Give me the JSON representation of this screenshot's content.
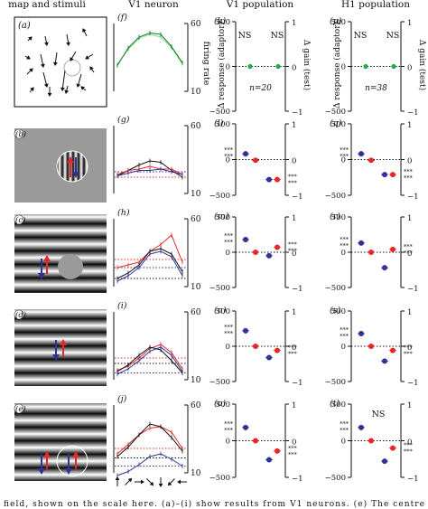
{
  "headers": {
    "col1": "map and stimuli",
    "col2": "V1 neuron",
    "col3": "V1 population",
    "col4": "H1 population"
  },
  "panel_letters": {
    "stimuli": [
      "(a)",
      "(b)",
      "(c)",
      "(d)",
      "(e)"
    ],
    "neuron": [
      "(f)",
      "(g)",
      "(h)",
      "(i)",
      "(j)"
    ],
    "v1": [
      "(k)",
      "(l)",
      "(m)",
      "(n)",
      "(o)"
    ],
    "h1": [
      "(p)",
      "(q)",
      "(r)",
      "(s)",
      "(t)"
    ]
  },
  "axis_labels": {
    "firing_rate": "firing rate",
    "delta_response": "Δ response (adaptor)",
    "delta_gain": "Δ gain (test)"
  },
  "ticks": {
    "neuron": [
      "60",
      "10"
    ],
    "pop_left": [
      "500",
      "0",
      "−500"
    ],
    "pop_right": [
      "1",
      "0",
      "−1"
    ]
  },
  "annotations": {
    "ns": "NS",
    "v1_n": "n=20",
    "h1_n": "n=38",
    "stars": "***",
    "double_star": "**",
    "single_star": "*"
  },
  "caption": "field, shown on the scale here. (a)–(i) show results from V1 neurons. (e) The centre",
  "colors": {
    "red": "#e8262a",
    "blue": "#2f3396",
    "black": "#111111",
    "green": "#22aa44",
    "light_green": "#88dd88"
  },
  "chart_data": [
    {
      "type": "line",
      "panel": "(f)",
      "series": [
        {
          "values": [
            30,
            41,
            49,
            52,
            50,
            42,
            30
          ]
        },
        {
          "values": [
            29,
            42,
            50,
            53,
            52,
            43,
            31
          ]
        }
      ],
      "ylim": [
        10,
        60
      ]
    },
    {
      "type": "line",
      "panel": "(g)",
      "series": [
        {
          "values": [
            23,
            27,
            31,
            34,
            33,
            27,
            22
          ]
        },
        {
          "values": [
            24,
            27,
            28,
            30,
            28,
            28,
            24
          ]
        },
        {
          "values": [
            23,
            25,
            27,
            27,
            28,
            26,
            24
          ]
        }
      ],
      "ylim": [
        10,
        60
      ]
    },
    {
      "type": "line",
      "panel": "(h)",
      "series": [
        {
          "values": [
            24,
            26,
            28,
            36,
            41,
            48,
            28
          ]
        },
        {
          "values": [
            16,
            20,
            26,
            36,
            38,
            34,
            21
          ]
        },
        {
          "values": [
            14,
            18,
            24,
            34,
            36,
            32,
            18
          ]
        }
      ],
      "ylim": [
        10,
        60
      ]
    },
    {
      "type": "line",
      "panel": "(i)",
      "series": [
        {
          "values": [
            17,
            20,
            26,
            33,
            36,
            30,
            18
          ]
        },
        {
          "values": [
            16,
            21,
            28,
            34,
            32,
            24,
            15
          ]
        },
        {
          "values": [
            14,
            18,
            24,
            31,
            34,
            28,
            16
          ]
        }
      ],
      "ylim": [
        10,
        60
      ]
    },
    {
      "type": "line",
      "panel": "(j)",
      "series": [
        {
          "values": [
            24,
            31,
            38,
            43,
            44,
            40,
            28
          ]
        },
        {
          "values": [
            22,
            29,
            38,
            46,
            44,
            36,
            26
          ]
        },
        {
          "values": [
            8,
            11,
            16,
            22,
            24,
            20,
            15
          ]
        }
      ],
      "ylim": [
        10,
        60
      ]
    },
    {
      "type": "scatter",
      "panel": "(k)",
      "points": [
        {
          "value": 0
        },
        {
          "value": 0
        }
      ],
      "ylim": [
        -500,
        500
      ]
    },
    {
      "type": "scatter",
      "panel": "(l)",
      "points": [
        {
          "value": 80
        },
        {
          "value": -10
        },
        {
          "value": -280
        },
        {
          "value": -280
        }
      ],
      "ylim": [
        -500,
        500
      ]
    },
    {
      "type": "scatter",
      "panel": "(m)",
      "points": [
        {
          "value": 180
        },
        {
          "value": 0
        },
        {
          "value": -50
        },
        {
          "value": 70
        }
      ],
      "ylim": [
        -500,
        500
      ]
    },
    {
      "type": "scatter",
      "panel": "(n)",
      "points": [
        {
          "value": 220
        },
        {
          "value": 0
        },
        {
          "value": -160
        },
        {
          "value": -60
        }
      ],
      "ylim": [
        -500,
        500
      ]
    },
    {
      "type": "scatter",
      "panel": "(o)",
      "points": [
        {
          "value": 180
        },
        {
          "value": 0
        },
        {
          "value": -260
        },
        {
          "value": -140
        }
      ],
      "ylim": [
        -500,
        500
      ]
    },
    {
      "type": "scatter",
      "panel": "(p)",
      "points": [
        {
          "value": 0
        },
        {
          "value": 0
        }
      ],
      "ylim": [
        -500,
        500
      ]
    },
    {
      "type": "scatter",
      "panel": "(q)",
      "points": [
        {
          "value": 80
        },
        {
          "value": -10
        },
        {
          "value": -210
        },
        {
          "value": -210
        }
      ],
      "ylim": [
        -500,
        500
      ]
    },
    {
      "type": "scatter",
      "panel": "(r)",
      "points": [
        {
          "value": 130
        },
        {
          "value": 0
        },
        {
          "value": -220
        },
        {
          "value": 40
        }
      ],
      "ylim": [
        -500,
        500
      ]
    },
    {
      "type": "scatter",
      "panel": "(s)",
      "points": [
        {
          "value": 180
        },
        {
          "value": 0
        },
        {
          "value": -210
        },
        {
          "value": -60
        }
      ],
      "ylim": [
        -500,
        500
      ]
    },
    {
      "type": "scatter",
      "panel": "(t)",
      "points": [
        {
          "value": 180
        },
        {
          "value": 0
        },
        {
          "value": -280
        },
        {
          "value": -100
        }
      ],
      "ylim": [
        -500,
        500
      ]
    }
  ]
}
